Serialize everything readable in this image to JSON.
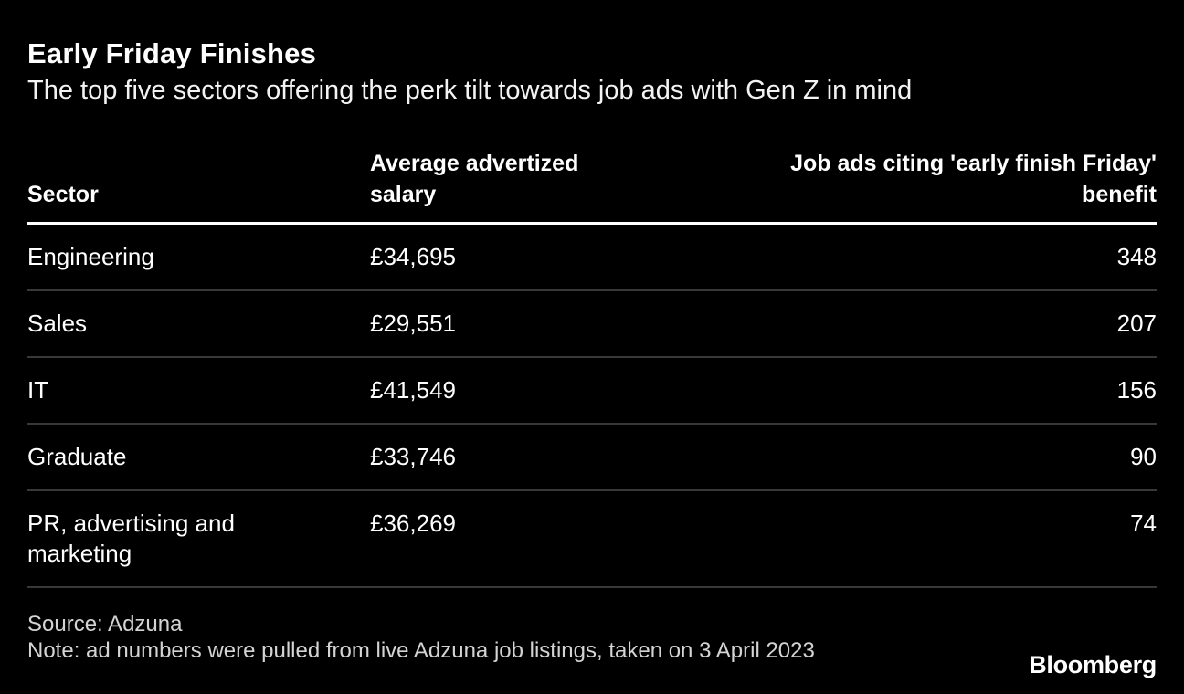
{
  "header": {
    "title": "Early Friday Finishes",
    "subtitle": "The top five sectors offering the perk tilt towards job ads with Gen Z in mind"
  },
  "table": {
    "columns": [
      {
        "label": "Sector"
      },
      {
        "label": "Average advertized salary"
      },
      {
        "label": "Job ads citing 'early finish Friday' benefit"
      }
    ],
    "rows": [
      {
        "sector": "Engineering",
        "salary": "£34,695",
        "ads": "348"
      },
      {
        "sector": "Sales",
        "salary": "£29,551",
        "ads": "207"
      },
      {
        "sector": "IT",
        "salary": "£41,549",
        "ads": "156"
      },
      {
        "sector": "Graduate",
        "salary": "£33,746",
        "ads": "90"
      },
      {
        "sector": "PR, advertising and marketing",
        "salary": "£36,269",
        "ads": "74"
      }
    ]
  },
  "footer": {
    "source": "Source: Adzuna",
    "note": "Note: ad numbers were pulled from live Adzuna job listings, taken on 3 April 2023",
    "brand": "Bloomberg"
  },
  "colors": {
    "background": "#000000",
    "text": "#ffffff",
    "muted_text": "#d4d4d4",
    "divider": "#383838",
    "header_rule": "#ffffff"
  },
  "chart_data": {
    "type": "table",
    "title": "Early Friday Finishes",
    "subtitle": "The top five sectors offering the perk tilt towards job ads with Gen Z in mind",
    "columns": [
      "Sector",
      "Average advertized salary",
      "Job ads citing 'early finish Friday' benefit"
    ],
    "rows": [
      [
        "Engineering",
        "£34,695",
        348
      ],
      [
        "Sales",
        "£29,551",
        207
      ],
      [
        "IT",
        "£41,549",
        156
      ],
      [
        "Graduate",
        "£33,746",
        90
      ],
      [
        "PR, advertising and marketing",
        "£36,269",
        74
      ]
    ],
    "source": "Source: Adzuna",
    "note": "Note: ad numbers were pulled from live Adzuna job listings, taken on 3 April 2023",
    "legend": false,
    "grid": "horizontal-row-dividers"
  }
}
